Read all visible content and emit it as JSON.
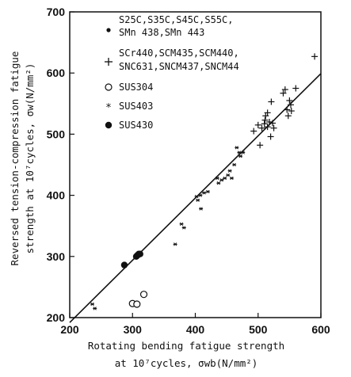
{
  "chart_data": {
    "type": "scatter",
    "title": "",
    "xlabel": "Rotating bending fatigue strength",
    "xlabel_line2": "at 10⁷cycles, σwb(N/mm²)",
    "ylabel": "Reversed tension-compression fatigue",
    "ylabel_line2": "strength at 10⁷cycles, σw(N/mm²)",
    "xlim": [
      200,
      600
    ],
    "ylim": [
      200,
      700
    ],
    "xticks": [
      200,
      300,
      400,
      500,
      600
    ],
    "yticks": [
      200,
      300,
      400,
      500,
      600,
      700
    ],
    "xtick_labels": [
      "200",
      "300",
      "400",
      "500",
      "600"
    ],
    "ytick_labels": [
      "200",
      "300",
      "400",
      "500",
      "600",
      "700"
    ],
    "grid": false,
    "legend_position": "top-left",
    "fit_line": {
      "x": [
        200,
        600
      ],
      "y": [
        192,
        599
      ]
    },
    "series": [
      {
        "name": "S25C,S35C,S45C,S55C,",
        "name_line2": "SMn 438,SMn 443",
        "marker": "dot",
        "points": []
      },
      {
        "name": "SCr440,SCM435,SCM440,",
        "name_line2": "SNC631,SNCM437,SNCM44",
        "marker": "plus",
        "points": [
          [
            493,
            505
          ],
          [
            500,
            515
          ],
          [
            503,
            482
          ],
          [
            506,
            510
          ],
          [
            510,
            517
          ],
          [
            511,
            523
          ],
          [
            512,
            530
          ],
          [
            515,
            535
          ],
          [
            515,
            512
          ],
          [
            518,
            520
          ],
          [
            520,
            496
          ],
          [
            521,
            553
          ],
          [
            523,
            518
          ],
          [
            525,
            510
          ],
          [
            540,
            567
          ],
          [
            543,
            573
          ],
          [
            546,
            540
          ],
          [
            548,
            530
          ],
          [
            550,
            555
          ],
          [
            552,
            548
          ],
          [
            553,
            538
          ],
          [
            560,
            575
          ],
          [
            590,
            627
          ]
        ]
      },
      {
        "name": "SUS304",
        "marker": "open-circle",
        "points": [
          [
            300,
            223
          ],
          [
            307,
            222
          ],
          [
            318,
            238
          ]
        ]
      },
      {
        "name": "SUS403",
        "marker": "star",
        "points": [
          [
            236,
            222
          ],
          [
            240,
            215
          ],
          [
            368,
            320
          ],
          [
            378,
            353
          ],
          [
            382,
            347
          ],
          [
            402,
            398
          ],
          [
            404,
            392
          ],
          [
            408,
            400
          ],
          [
            409,
            378
          ],
          [
            414,
            404
          ],
          [
            420,
            406
          ],
          [
            435,
            428
          ],
          [
            437,
            420
          ],
          [
            442,
            425
          ],
          [
            447,
            428
          ],
          [
            452,
            433
          ],
          [
            455,
            440
          ],
          [
            458,
            428
          ],
          [
            462,
            450
          ],
          [
            466,
            478
          ],
          [
            470,
            470
          ],
          [
            472,
            464
          ],
          [
            476,
            470
          ]
        ]
      },
      {
        "name": "SUS430",
        "marker": "filled-circle",
        "points": [
          [
            287,
            286
          ],
          [
            306,
            300
          ],
          [
            308,
            302
          ],
          [
            310,
            304
          ],
          [
            312,
            304
          ]
        ]
      }
    ]
  }
}
